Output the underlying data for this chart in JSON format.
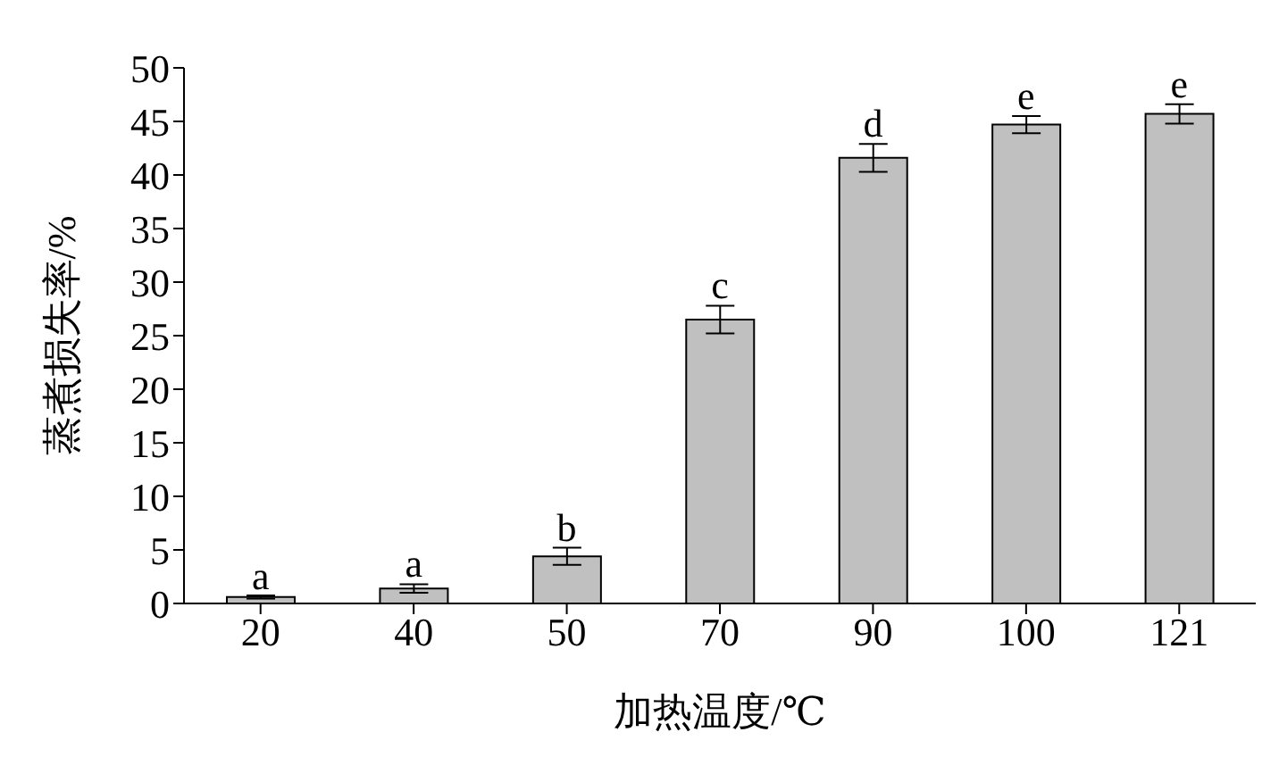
{
  "chart_data": {
    "type": "bar",
    "xlabel": "加热温度/℃",
    "ylabel": "蒸煮损失率/%",
    "categories": [
      "20",
      "40",
      "50",
      "70",
      "90",
      "100",
      "121"
    ],
    "values": [
      0.6,
      1.4,
      4.4,
      26.5,
      41.6,
      44.7,
      45.7
    ],
    "errors": [
      0.15,
      0.4,
      0.8,
      1.3,
      1.3,
      0.8,
      0.9
    ],
    "color": "#c0c0c0",
    "ylim": [
      0,
      50
    ],
    "yticks": [
      0,
      5,
      10,
      15,
      20,
      25,
      30,
      35,
      40,
      45,
      50
    ],
    "grid": false,
    "annotations": [
      {
        "text": "a",
        "x": "20",
        "y": 0.7
      },
      {
        "text": "a",
        "x": "40",
        "y": 1.8
      },
      {
        "text": "b",
        "x": "50",
        "y": 5.2
      },
      {
        "text": "c",
        "x": "70",
        "y": 27.8
      },
      {
        "text": "d",
        "x": "90",
        "y": 42.9
      },
      {
        "text": "e",
        "x": "100",
        "y": 45.5
      },
      {
        "text": "e",
        "x": "121",
        "y": 46.6
      }
    ]
  }
}
